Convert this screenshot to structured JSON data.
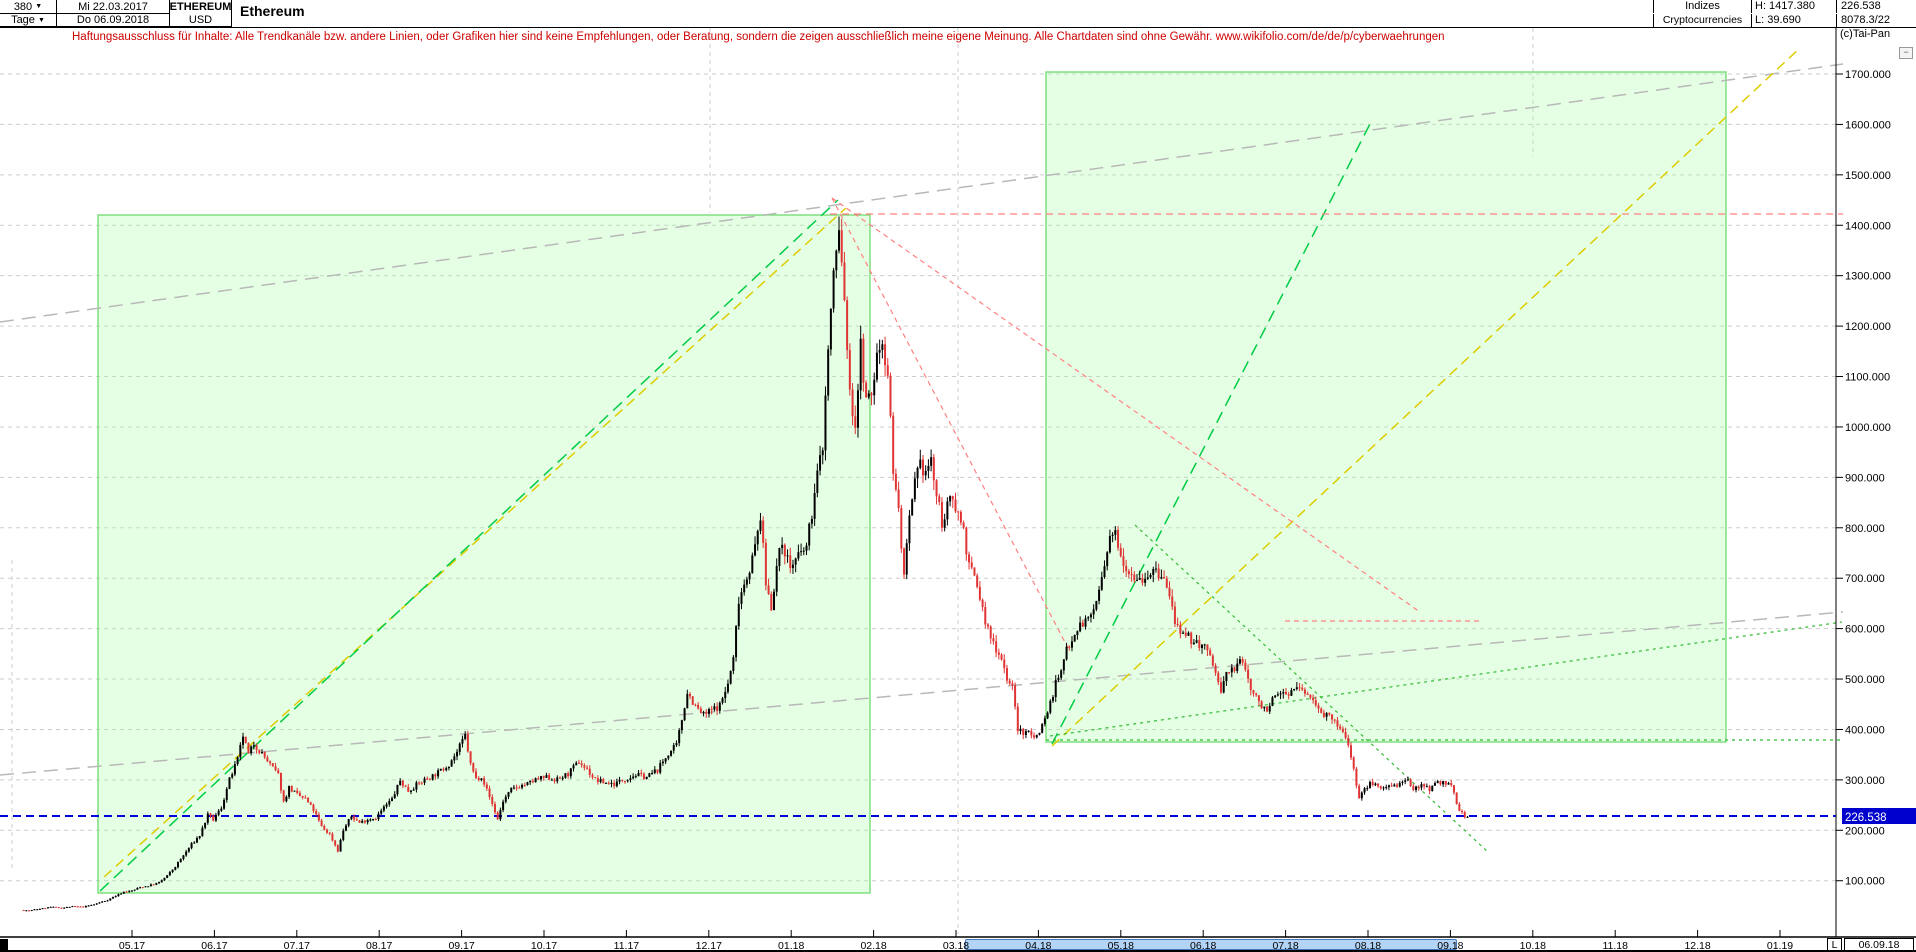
{
  "header": {
    "bars_count": "380",
    "period": "Tage",
    "dropdown_glyph": "▼",
    "date_from": "Mi 22.03.2017",
    "date_to": "Do 06.09.2018",
    "symbol": "ETHEREUM",
    "currency": "USD",
    "title": "Ethereum",
    "group_row1": "Indizes",
    "group_row2": "Cryptocurrencies",
    "range_high": "H: 1417.380",
    "range_low": "L: 39.690",
    "last_price": "226.538",
    "secondary_value": "8078.3/22",
    "copyright": "(c)Tai-Pan",
    "minimize_glyph": "−"
  },
  "disclaimer": {
    "text": "Haftungsausschluss für Inhalte: Alle Trendkanäle bzw. andere Linien, oder Grafiken hier sind keine Empfehlungen, oder Beratung, sondern die zeigen ausschließlich meine eigene Meinung. Alle Chartdaten sind ohne Gewähr.  www.wikifolio.com/de/de/p/cyberwaehrungen"
  },
  "axis": {
    "y_min": 100,
    "y_max": 1700,
    "y_step": 100,
    "y_suffix": ".000",
    "months": [
      "05.17",
      "06.17",
      "07.17",
      "08.17",
      "09.17",
      "10.17",
      "11.17",
      "12.17",
      "01.18",
      "02.18",
      "03.18",
      "04.18",
      "05.18",
      "06.18",
      "07.18",
      "08.18",
      "09.18",
      "10.18",
      "11.18",
      "12.18",
      "01.19"
    ],
    "price_tag": "226.538",
    "l_marker": "L",
    "last_date": "06.09.18"
  },
  "chart_data": {
    "type": "candlestick",
    "title": "Ethereum",
    "symbol": "ETHEREUM/USD",
    "timeframe": "Tage",
    "range_start": "22.03.2017",
    "range_end": "06.09.2018",
    "period_high": 1417.38,
    "period_low": 39.69,
    "last_close": 226.538,
    "ylim": [
      0,
      1760
    ],
    "grid": true,
    "x_unit": "days since 22.03.2017",
    "waypoints": [
      [
        0,
        42
      ],
      [
        2,
        40
      ],
      [
        4,
        43
      ],
      [
        7,
        45
      ],
      [
        10,
        48
      ],
      [
        14,
        46
      ],
      [
        18,
        49
      ],
      [
        22,
        48
      ],
      [
        26,
        53
      ],
      [
        31,
        62
      ],
      [
        34,
        70
      ],
      [
        37,
        78
      ],
      [
        40,
        80
      ],
      [
        43,
        87
      ],
      [
        46,
        90
      ],
      [
        50,
        96
      ],
      [
        53,
        110
      ],
      [
        56,
        128
      ],
      [
        59,
        150
      ],
      [
        62,
        172
      ],
      [
        65,
        190
      ],
      [
        68,
        230
      ],
      [
        70,
        221
      ],
      [
        73,
        245
      ],
      [
        76,
        300
      ],
      [
        79,
        340
      ],
      [
        81,
        388
      ],
      [
        83,
        350
      ],
      [
        85,
        372
      ],
      [
        88,
        352
      ],
      [
        91,
        330
      ],
      [
        94,
        310
      ],
      [
        96,
        256
      ],
      [
        98,
        285
      ],
      [
        101,
        270
      ],
      [
        104,
        262
      ],
      [
        107,
        240
      ],
      [
        110,
        207
      ],
      [
        113,
        192
      ],
      [
        116,
        160
      ],
      [
        118,
        200
      ],
      [
        121,
        228
      ],
      [
        124,
        215
      ],
      [
        127,
        222
      ],
      [
        130,
        225
      ],
      [
        133,
        245
      ],
      [
        136,
        262
      ],
      [
        139,
        298
      ],
      [
        142,
        278
      ],
      [
        145,
        290
      ],
      [
        148,
        300
      ],
      [
        151,
        308
      ],
      [
        154,
        318
      ],
      [
        157,
        332
      ],
      [
        160,
        355
      ],
      [
        163,
        388
      ],
      [
        165,
        330
      ],
      [
        167,
        302
      ],
      [
        169,
        308
      ],
      [
        171,
        280
      ],
      [
        173,
        252
      ],
      [
        175,
        222
      ],
      [
        177,
        258
      ],
      [
        180,
        280
      ],
      [
        183,
        288
      ],
      [
        186,
        292
      ],
      [
        189,
        300
      ],
      [
        193,
        305
      ],
      [
        197,
        300
      ],
      [
        201,
        312
      ],
      [
        205,
        336
      ],
      [
        208,
        320
      ],
      [
        211,
        300
      ],
      [
        214,
        295
      ],
      [
        218,
        292
      ],
      [
        222,
        302
      ],
      [
        226,
        310
      ],
      [
        230,
        306
      ],
      [
        234,
        320
      ],
      [
        238,
        352
      ],
      [
        241,
        368
      ],
      [
        243,
        420
      ],
      [
        245,
        475
      ],
      [
        248,
        445
      ],
      [
        251,
        428
      ],
      [
        254,
        438
      ],
      [
        257,
        448
      ],
      [
        260,
        490
      ],
      [
        262,
        540
      ],
      [
        264,
        660
      ],
      [
        266,
        690
      ],
      [
        268,
        720
      ],
      [
        270,
        760
      ],
      [
        272,
        824
      ],
      [
        274,
        690
      ],
      [
        276,
        645
      ],
      [
        278,
        722
      ],
      [
        280,
        772
      ],
      [
        283,
        722
      ],
      [
        286,
        742
      ],
      [
        289,
        762
      ],
      [
        291,
        830
      ],
      [
        293,
        905
      ],
      [
        295,
        965
      ],
      [
        297,
        1155
      ],
      [
        299,
        1305
      ],
      [
        301,
        1388
      ],
      [
        303,
        1255
      ],
      [
        305,
        1060
      ],
      [
        307,
        1005
      ],
      [
        309,
        1158
      ],
      [
        311,
        1048
      ],
      [
        313,
        1062
      ],
      [
        315,
        1140
      ],
      [
        317,
        1172
      ],
      [
        319,
        1108
      ],
      [
        321,
        918
      ],
      [
        323,
        832
      ],
      [
        325,
        702
      ],
      [
        327,
        812
      ],
      [
        329,
        885
      ],
      [
        331,
        922
      ],
      [
        333,
        912
      ],
      [
        335,
        932
      ],
      [
        337,
        862
      ],
      [
        339,
        812
      ],
      [
        341,
        838
      ],
      [
        343,
        862
      ],
      [
        345,
        828
      ],
      [
        347,
        798
      ],
      [
        349,
        722
      ],
      [
        351,
        702
      ],
      [
        353,
        662
      ],
      [
        355,
        612
      ],
      [
        357,
        582
      ],
      [
        359,
        562
      ],
      [
        361,
        542
      ],
      [
        363,
        502
      ],
      [
        365,
        482
      ],
      [
        367,
        402
      ],
      [
        369,
        388
      ],
      [
        371,
        402
      ],
      [
        373,
        382
      ],
      [
        375,
        398
      ],
      [
        377,
        422
      ],
      [
        379,
        452
      ],
      [
        381,
        492
      ],
      [
        383,
        512
      ],
      [
        385,
        562
      ],
      [
        387,
        582
      ],
      [
        389,
        602
      ],
      [
        391,
        612
      ],
      [
        393,
        617
      ],
      [
        395,
        640
      ],
      [
        397,
        672
      ],
      [
        399,
        722
      ],
      [
        401,
        772
      ],
      [
        403,
        792
      ],
      [
        405,
        752
      ],
      [
        407,
        722
      ],
      [
        409,
        712
      ],
      [
        411,
        702
      ],
      [
        413,
        700
      ],
      [
        415,
        708
      ],
      [
        417,
        712
      ],
      [
        419,
        706
      ],
      [
        421,
        698
      ],
      [
        423,
        662
      ],
      [
        425,
        618
      ],
      [
        427,
        582
      ],
      [
        430,
        582
      ],
      [
        433,
        572
      ],
      [
        436,
        562
      ],
      [
        439,
        532
      ],
      [
        442,
        472
      ],
      [
        444,
        512
      ],
      [
        447,
        522
      ],
      [
        450,
        536
      ],
      [
        453,
        482
      ],
      [
        456,
        452
      ],
      [
        459,
        442
      ],
      [
        461,
        456
      ],
      [
        463,
        468
      ],
      [
        465,
        472
      ],
      [
        468,
        476
      ],
      [
        471,
        482
      ],
      [
        474,
        468
      ],
      [
        477,
        452
      ],
      [
        480,
        432
      ],
      [
        483,
        418
      ],
      [
        486,
        402
      ],
      [
        489,
        372
      ],
      [
        491,
        322
      ],
      [
        493,
        262
      ],
      [
        495,
        282
      ],
      [
        497,
        292
      ],
      [
        499,
        296
      ],
      [
        501,
        282
      ],
      [
        503,
        288
      ],
      [
        505,
        292
      ],
      [
        507,
        288
      ],
      [
        509,
        294
      ],
      [
        511,
        296
      ],
      [
        513,
        282
      ],
      [
        515,
        288
      ],
      [
        517,
        292
      ],
      [
        519,
        282
      ],
      [
        521,
        292
      ],
      [
        523,
        296
      ],
      [
        525,
        292
      ],
      [
        527,
        288
      ],
      [
        529,
        252
      ],
      [
        531,
        232
      ],
      [
        533,
        226.54
      ]
    ],
    "drawings": {
      "verticals": [
        [
          710,
          28,
          213
        ],
        [
          958,
          28,
          934
        ],
        [
          1533,
          28,
          157
        ],
        [
          12,
          560,
          870
        ]
      ],
      "boxes": [
        [
          98,
          215,
          870,
          893
        ],
        [
          1046,
          72,
          1726,
          742
        ]
      ],
      "lines": [
        {
          "p": [
            0,
            322,
            1843,
            64
          ],
          "c": "gray",
          "d": "14,8",
          "w": 1.5
        },
        {
          "p": [
            0,
            775,
            1843,
            612
          ],
          "c": "gray",
          "d": "14,8",
          "w": 1.5
        },
        {
          "p": [
            104,
            877,
            846,
            208
          ],
          "c": "yellow",
          "d": "10,6",
          "w": 1.5
        },
        {
          "p": [
            1052,
            746,
            1800,
            48
          ],
          "c": "yellow",
          "d": "10,6",
          "w": 1.5
        },
        {
          "p": [
            100,
            891,
            838,
            200
          ],
          "c": "green",
          "d": "12,7",
          "w": 1.5
        },
        {
          "p": [
            1052,
            744,
            1372,
            120
          ],
          "c": "green",
          "d": "12,7",
          "w": 1.5
        },
        {
          "p": [
            1050,
            736,
            1842,
            622
          ],
          "c": "green2",
          "d": "3,4",
          "w": 1.2
        },
        {
          "p": [
            1135,
            525,
            1488,
            852
          ],
          "c": "green2",
          "d": "3,4",
          "w": 1.2
        },
        {
          "p": [
            1046,
            740,
            1842,
            740
          ],
          "c": "green2",
          "d": "3,4",
          "w": 1.2
        },
        {
          "p": [
            830,
            214,
            1843,
            214
          ],
          "c": "red",
          "d": "7,5",
          "w": 1.2
        },
        {
          "p": [
            832,
            198,
            1068,
            648
          ],
          "c": "red",
          "d": "5,4",
          "w": 1.2
        },
        {
          "p": [
            832,
            198,
            1420,
            612
          ],
          "c": "red",
          "d": "5,4",
          "w": 1.2
        },
        {
          "p": [
            1285,
            621,
            1480,
            621
          ],
          "c": "red",
          "d": "5,4",
          "w": 1.2
        },
        {
          "p": [
            0,
            816,
            1836,
            816
          ],
          "c": "blue",
          "d": "8,5",
          "w": 2
        }
      ]
    }
  },
  "colors": {
    "grid": "#cdcdcd",
    "gray": "#b8b8b8",
    "yellow": "#ddcc00",
    "green": "#00cc44",
    "green2": "#33bb33",
    "red": "#ff8080",
    "blue": "#0000dd",
    "box_border": "#77dd77",
    "box_fill": "rgba(170,255,170,0.30)",
    "candle_up": "#000000",
    "candle_down": "#e03333",
    "tag_bg": "#0000cc",
    "tag_text": "#ffffff",
    "band_fill": "#b3d4f5",
    "axis_line": "#000000"
  }
}
